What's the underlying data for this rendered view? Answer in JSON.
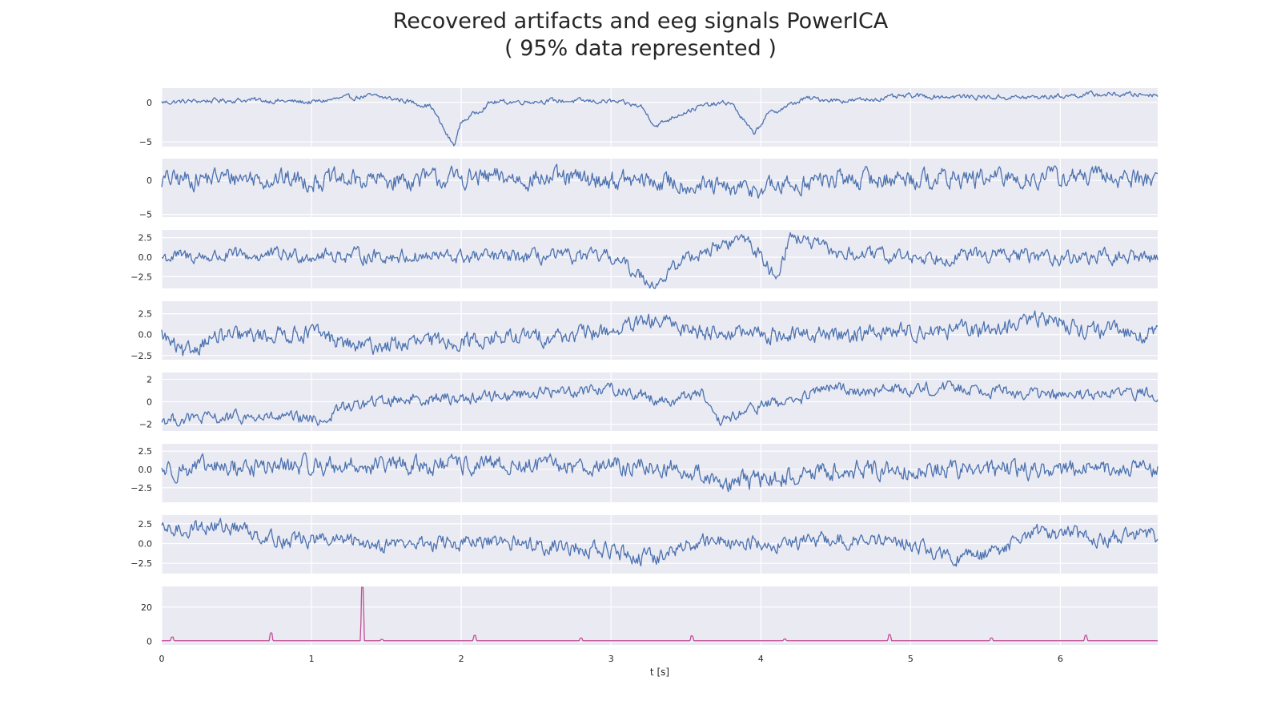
{
  "title_line1": "Recovered artifacts and eeg signals PowerICA",
  "title_line2": "( 95% data represented )",
  "chart_data": {
    "type": "line",
    "xlabel": "t [s]",
    "xlim": [
      0,
      6.65
    ],
    "xticks": [
      0,
      1,
      2,
      3,
      4,
      5,
      6
    ],
    "grid": true,
    "background": "#eaeaf2",
    "panels": [
      {
        "color": "#4c72b0",
        "ylim": [
          -5.6,
          1.8
        ],
        "yticks": [
          0,
          -5
        ],
        "yticklabels": [
          "0",
          "−5"
        ],
        "points": [
          [
            0,
            0
          ],
          [
            0.3,
            0.2
          ],
          [
            0.6,
            0.3
          ],
          [
            1.0,
            0
          ],
          [
            1.2,
            0.5
          ],
          [
            1.4,
            0.8
          ],
          [
            1.6,
            0.3
          ],
          [
            1.8,
            -0.5
          ],
          [
            1.9,
            -4.0
          ],
          [
            1.95,
            -5.5
          ],
          [
            2.0,
            -2.5
          ],
          [
            2.2,
            0
          ],
          [
            2.6,
            0.2
          ],
          [
            3.0,
            0.1
          ],
          [
            3.2,
            -0.5
          ],
          [
            3.3,
            -3.0
          ],
          [
            3.45,
            -1.5
          ],
          [
            3.6,
            -0.5
          ],
          [
            3.8,
            0
          ],
          [
            3.95,
            -4.0
          ],
          [
            4.05,
            -1.5
          ],
          [
            4.3,
            0.5
          ],
          [
            4.6,
            0.2
          ],
          [
            5.0,
            0.8
          ],
          [
            5.4,
            0.7
          ],
          [
            5.8,
            0.6
          ],
          [
            6.2,
            1.0
          ],
          [
            6.65,
            1.0
          ]
        ],
        "noise": 0.35
      },
      {
        "color": "#4c72b0",
        "ylim": [
          -5.4,
          3.2
        ],
        "yticks": [
          0,
          -5
        ],
        "yticklabels": [
          "0",
          "−5"
        ],
        "points": [
          [
            0,
            0
          ],
          [
            0.5,
            0.5
          ],
          [
            1.0,
            0
          ],
          [
            1.5,
            0
          ],
          [
            2.0,
            0.3
          ],
          [
            2.5,
            0.3
          ],
          [
            3.0,
            0
          ],
          [
            3.5,
            -0.5
          ],
          [
            3.8,
            -1.5
          ],
          [
            4.1,
            -1.0
          ],
          [
            4.4,
            0
          ],
          [
            5.0,
            0.3
          ],
          [
            5.5,
            0.2
          ],
          [
            6.0,
            0.5
          ],
          [
            6.65,
            0.3
          ]
        ],
        "noise": 1.6
      },
      {
        "color": "#4c72b0",
        "ylim": [
          -4,
          3.5
        ],
        "yticks": [
          2.5,
          0.0,
          -2.5
        ],
        "yticklabels": [
          "2.5",
          "0.0",
          "−2.5"
        ],
        "points": [
          [
            0,
            0
          ],
          [
            1.0,
            0.3
          ],
          [
            2.0,
            0
          ],
          [
            3.0,
            0
          ],
          [
            3.3,
            -3.5
          ],
          [
            3.5,
            0
          ],
          [
            3.9,
            2.5
          ],
          [
            4.1,
            -2.5
          ],
          [
            4.2,
            2.8
          ],
          [
            4.5,
            0.5
          ],
          [
            5.0,
            0
          ],
          [
            5.5,
            0.3
          ],
          [
            6.0,
            0
          ],
          [
            6.65,
            0
          ]
        ],
        "noise": 1.0
      },
      {
        "color": "#4c72b0",
        "ylim": [
          -3,
          4
        ],
        "yticks": [
          2.5,
          0.0,
          -2.5
        ],
        "yticklabels": [
          "2.5",
          "0.0",
          "−2.5"
        ],
        "points": [
          [
            0,
            0
          ],
          [
            0.15,
            -2.6
          ],
          [
            0.3,
            -0.5
          ],
          [
            1.0,
            0.3
          ],
          [
            1.3,
            -1.5
          ],
          [
            1.7,
            -1.0
          ],
          [
            2.2,
            -0.5
          ],
          [
            2.8,
            0
          ],
          [
            3.0,
            0.5
          ],
          [
            3.3,
            1.5
          ],
          [
            3.6,
            0.5
          ],
          [
            4.0,
            0
          ],
          [
            4.5,
            0
          ],
          [
            5.0,
            0.5
          ],
          [
            5.5,
            0.5
          ],
          [
            5.9,
            2.0
          ],
          [
            6.2,
            0.5
          ],
          [
            6.65,
            0
          ]
        ],
        "noise": 1.1
      },
      {
        "color": "#4c72b0",
        "ylim": [
          -2.6,
          2.6
        ],
        "yticks": [
          2,
          0,
          -2
        ],
        "yticklabels": [
          "2",
          "0",
          "−2"
        ],
        "points": [
          [
            0,
            -1.6
          ],
          [
            0.6,
            -1.4
          ],
          [
            1.1,
            -1.6
          ],
          [
            1.2,
            -0.5
          ],
          [
            1.6,
            0.3
          ],
          [
            2.0,
            0.3
          ],
          [
            2.5,
            0.8
          ],
          [
            3.0,
            1.2
          ],
          [
            3.4,
            0
          ],
          [
            3.6,
            1.0
          ],
          [
            3.7,
            -2.0
          ],
          [
            4.0,
            -0.3
          ],
          [
            4.3,
            0.3
          ],
          [
            4.4,
            1.2
          ],
          [
            4.8,
            1.0
          ],
          [
            5.3,
            1.3
          ],
          [
            5.6,
            1.0
          ],
          [
            6.0,
            0.5
          ],
          [
            6.65,
            0.8
          ]
        ],
        "noise": 0.6
      },
      {
        "color": "#4c72b0",
        "ylim": [
          -4.5,
          3.5
        ],
        "yticks": [
          2.5,
          0.0,
          -2.5
        ],
        "yticklabels": [
          "2.5",
          "0.0",
          "−2.5"
        ],
        "points": [
          [
            0,
            0
          ],
          [
            1.0,
            0.5
          ],
          [
            2.0,
            0.5
          ],
          [
            3.0,
            0.5
          ],
          [
            3.5,
            0
          ],
          [
            3.8,
            -2.0
          ],
          [
            4.2,
            -1.0
          ],
          [
            4.5,
            0
          ],
          [
            5.0,
            0
          ],
          [
            5.5,
            0
          ],
          [
            6.0,
            0
          ],
          [
            6.65,
            0
          ]
        ],
        "noise": 1.4
      },
      {
        "color": "#4c72b0",
        "ylim": [
          -3.8,
          3.6
        ],
        "yticks": [
          2.5,
          0.0,
          -2.5
        ],
        "yticklabels": [
          "2.5",
          "0.0",
          "−2.5"
        ],
        "points": [
          [
            0,
            1.5
          ],
          [
            0.3,
            2.2
          ],
          [
            0.5,
            2.0
          ],
          [
            0.8,
            0.5
          ],
          [
            1.0,
            0.5
          ],
          [
            1.5,
            0
          ],
          [
            2.0,
            0
          ],
          [
            2.5,
            0
          ],
          [
            3.0,
            -1.0
          ],
          [
            3.3,
            -2.0
          ],
          [
            3.6,
            0.5
          ],
          [
            4.0,
            0
          ],
          [
            4.5,
            0.5
          ],
          [
            5.0,
            0
          ],
          [
            5.3,
            -2.0
          ],
          [
            5.6,
            -1.0
          ],
          [
            5.8,
            1.5
          ],
          [
            6.2,
            0.8
          ],
          [
            6.65,
            1.0
          ]
        ],
        "noise": 1.1
      },
      {
        "color": "#c44e96",
        "ylim": [
          -2,
          32
        ],
        "yticks": [
          20,
          0
        ],
        "yticklabels": [
          "20",
          "0"
        ],
        "baseline": 0.4,
        "spikes": [
          [
            0.07,
            2.5
          ],
          [
            0.73,
            5.0
          ],
          [
            1.34,
            31.5
          ],
          [
            1.47,
            1.2
          ],
          [
            2.09,
            3.5
          ],
          [
            2.8,
            2.0
          ],
          [
            3.54,
            3.2
          ],
          [
            4.16,
            1.4
          ],
          [
            4.86,
            4.0
          ],
          [
            5.54,
            2.0
          ],
          [
            6.17,
            3.5
          ]
        ]
      }
    ]
  }
}
